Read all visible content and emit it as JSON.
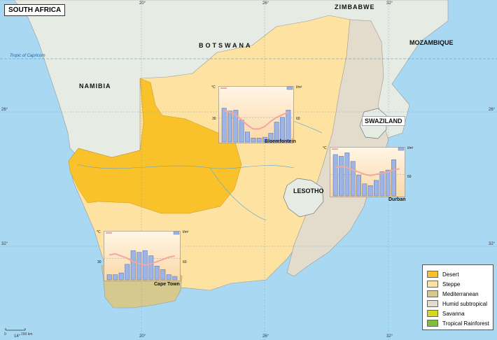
{
  "title": "SOUTH AFRICA",
  "countries": {
    "namibia": "NAMIBIA",
    "botswana": "BOTSWANA",
    "zimbabwe": "ZIMBABWE",
    "mozambique": "MOZAMBIQUE",
    "swaziland": "SWAZILAND",
    "lesotho": "LESOTHO"
  },
  "tropic_label": "Tropic of Capricorn",
  "coordinates": {
    "lon_top": [
      "20°",
      "26°",
      "32°"
    ],
    "lon_bottom": [
      "14°",
      "20°",
      "26°",
      "32°"
    ],
    "lat_left": [
      "26°",
      "32°"
    ],
    "lat_right": [
      "26°",
      "32°"
    ]
  },
  "scale": {
    "zero": "0",
    "distance": "150 km"
  },
  "legend": {
    "items": [
      {
        "label": "Desert",
        "color": "#f9c22a"
      },
      {
        "label": "Steppe",
        "color": "#fde2a2"
      },
      {
        "label": "Mediterranean",
        "color": "#d6c98e"
      },
      {
        "label": "Humid subtropical",
        "color": "#e3dccd"
      },
      {
        "label": "Savanna",
        "color": "#d5d91d"
      },
      {
        "label": "Tropical Rainforest",
        "color": "#7fbf3f"
      }
    ]
  },
  "climate_charts": {
    "unit_temp": "°C",
    "unit_precip": "l/m²",
    "temp_tick": "30",
    "precip_tick": "60",
    "stations": [
      {
        "name": "Bloemfontein",
        "precip": [
          85,
          78,
          80,
          55,
          25,
          10,
          10,
          12,
          22,
          50,
          62,
          80
        ],
        "temp": [
          23,
          22,
          20,
          16,
          12,
          9,
          9,
          11,
          15,
          18,
          20,
          22
        ]
      },
      {
        "name": "Durban",
        "precip": [
          120,
          115,
          125,
          100,
          60,
          35,
          30,
          45,
          70,
          75,
          105,
          0
        ],
        "temp": [
          24,
          25,
          24,
          22,
          20,
          18,
          17,
          18,
          19,
          20,
          22,
          23
        ]
      },
      {
        "name": "Cape Town",
        "precip": [
          15,
          15,
          20,
          45,
          85,
          80,
          85,
          70,
          40,
          30,
          15,
          10
        ],
        "temp": [
          21,
          22,
          20,
          18,
          15,
          13,
          12,
          13,
          15,
          17,
          19,
          20
        ]
      }
    ]
  }
}
